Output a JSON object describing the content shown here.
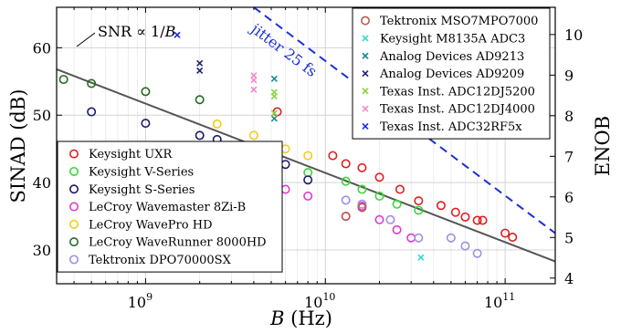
{
  "chart_data": {
    "type": "scatter",
    "xlabel": "B (Hz)",
    "ylabel": "SINAD (dB)",
    "y2label": "ENOB",
    "x_scale": "log",
    "xlim": [
      320000000.0,
      190000000000.0
    ],
    "ylim": [
      25,
      66
    ],
    "grid": true,
    "xticks": [
      {
        "v": 1000000000.0,
        "base": "10",
        "exp": "9"
      },
      {
        "v": 10000000000.0,
        "base": "10",
        "exp": "10"
      },
      {
        "v": 100000000000.0,
        "base": "10",
        "exp": "11"
      }
    ],
    "yticks": [
      30,
      40,
      50,
      60
    ],
    "y2ticks": [
      4,
      5,
      6,
      7,
      8,
      9,
      10
    ],
    "fit_line": {
      "label_prefix": "SNR ∝ 1/",
      "label_var": "B",
      "x": [
        320000000.0,
        190000000000.0
      ],
      "y": [
        56.8,
        28.3
      ],
      "color": "#555555"
    },
    "jitter_line": {
      "label": "jitter 25 fs",
      "x": [
        4000000000.0,
        190000000000.0
      ],
      "y": [
        66.0,
        32.5
      ],
      "color": "#1b2ed6"
    },
    "legend_right_pos": "top-right",
    "legend_left_pos": "bottom-left",
    "series": [
      {
        "name": "Keysight UXR",
        "marker": "circle",
        "color": "#dd1f1f",
        "legend": "left",
        "x": [
          5400000000.0,
          11000000000.0,
          13000000000.0,
          16000000000.0,
          20000000000.0,
          26000000000.0,
          33000000000.0,
          44000000000.0,
          53000000000.0,
          60000000000.0,
          70000000000.0,
          75000000000.0,
          100000000000.0,
          110000000000.0
        ],
        "y": [
          50.5,
          44.0,
          42.8,
          42.2,
          40.8,
          39.0,
          37.3,
          36.6,
          35.6,
          34.9,
          34.4,
          34.4,
          32.5,
          31.9
        ]
      },
      {
        "name": "Keysight V-Series",
        "marker": "circle",
        "color": "#3ad73a",
        "legend": "left",
        "x": [
          8000000000.0,
          13000000000.0,
          16000000000.0,
          20000000000.0,
          25000000000.0,
          33000000000.0
        ],
        "y": [
          41.5,
          40.2,
          39.0,
          38.0,
          36.8,
          35.9
        ]
      },
      {
        "name": "Keysight S-Series",
        "marker": "circle",
        "color": "#1a1a66",
        "legend": "left",
        "x": [
          500000000.0,
          1000000000.0,
          2000000000.0,
          2500000000.0,
          4000000000.0,
          6000000000.0,
          8000000000.0
        ],
        "y": [
          50.5,
          48.8,
          47.0,
          46.4,
          45.2,
          42.7,
          40.4
        ]
      },
      {
        "name": "LeCroy Wavemaster 8Zi-B",
        "marker": "circle",
        "color": "#e03ad2",
        "legend": "left",
        "x": [
          4000000000.0,
          6000000000.0,
          8000000000.0,
          13000000000.0,
          16000000000.0,
          20000000000.0,
          25000000000.0,
          30000000000.0
        ],
        "y": [
          41.0,
          39.0,
          38.0,
          35.0,
          36.5,
          34.5,
          33.0,
          31.8
        ]
      },
      {
        "name": "LeCroy WavePro HD",
        "marker": "circle",
        "color": "#f0cd1b",
        "legend": "left",
        "x": [
          2500000000.0,
          4000000000.0,
          6000000000.0,
          8000000000.0
        ],
        "y": [
          48.7,
          47.0,
          45.0,
          44.0
        ]
      },
      {
        "name": "LeCroy WaveRunner 8000HD",
        "marker": "circle",
        "color": "#236a23",
        "legend": "left",
        "x": [
          350000000.0,
          500000000.0,
          1000000000.0,
          2000000000.0
        ],
        "y": [
          55.3,
          54.7,
          53.5,
          52.3
        ]
      },
      {
        "name": "Tektronix DPO70000SX",
        "marker": "circle",
        "color": "#9b8fe6",
        "legend": "left",
        "x": [
          13000000000.0,
          16000000000.0,
          23000000000.0,
          33000000000.0,
          50000000000.0,
          60000000000.0,
          70000000000.0
        ],
        "y": [
          37.4,
          36.8,
          34.5,
          31.8,
          31.8,
          30.6,
          29.5
        ]
      },
      {
        "name": "Tektronix MSO7MPO7000",
        "marker": "circle",
        "color": "#c0584c",
        "legend": "right",
        "x": [
          13000000000.0,
          16000000000.0
        ],
        "y": [
          35.0,
          36.3
        ]
      },
      {
        "name": "Keysight M8135A ADC3",
        "marker": "x",
        "color": "#2fd8cc",
        "legend": "right",
        "x": [
          34000000000.0
        ],
        "y": [
          28.9
        ]
      },
      {
        "name": "Analog Devices AD9213",
        "marker": "x",
        "color": "#1a8c8c",
        "legend": "right",
        "x": [
          5200000000.0,
          5200000000.0
        ],
        "y": [
          55.4,
          49.5
        ]
      },
      {
        "name": "Analog Devices AD9209",
        "marker": "x",
        "color": "#1b2470",
        "legend": "right",
        "x": [
          2000000000.0,
          2000000000.0
        ],
        "y": [
          57.7,
          56.6
        ]
      },
      {
        "name": "Texas Inst. ADC12DJ5200",
        "marker": "x",
        "color": "#86d43c",
        "legend": "right",
        "x": [
          5200000000.0,
          5200000000.0,
          5200000000.0
        ],
        "y": [
          53.4,
          52.8,
          50.3
        ]
      },
      {
        "name": "Texas Inst. ADC12DJ4000",
        "marker": "x",
        "color": "#f08ad0",
        "legend": "right",
        "x": [
          4000000000.0,
          4000000000.0,
          4000000000.0
        ],
        "y": [
          55.9,
          55.2,
          53.8
        ]
      },
      {
        "name": "Texas Inst. ADC32RF5x",
        "marker": "x",
        "color": "#1b2ed6",
        "legend": "right",
        "x": [
          1500000000.0
        ],
        "y": [
          61.9
        ]
      }
    ]
  }
}
